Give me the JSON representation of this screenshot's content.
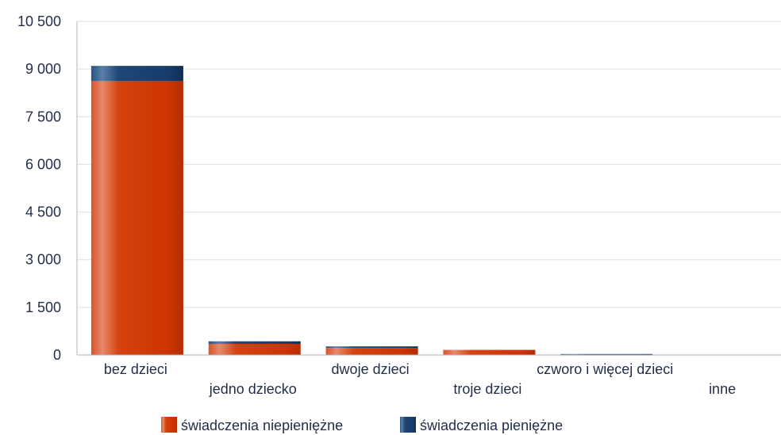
{
  "chart_data": {
    "type": "bar",
    "stacked": true,
    "categories": [
      "bez dzieci",
      "jedno dziecko",
      "dwoje dzieci",
      "troje dzieci",
      "czworo i więcej dzieci",
      "inne"
    ],
    "series": [
      {
        "name": "świadczenia niepieniężne",
        "values": [
          8620,
          350,
          220,
          160,
          10,
          0
        ],
        "color": "#cc3300"
      },
      {
        "name": "świadczenia pieniężne",
        "values": [
          480,
          80,
          50,
          0,
          20,
          0
        ],
        "color": "#163c6b"
      }
    ],
    "ylim": [
      0,
      10500
    ],
    "y_ticks": [
      "0",
      "1 500",
      "3 000",
      "4 500",
      "6 000",
      "7 500",
      "9 000",
      "10 500"
    ],
    "y_tick_values": [
      0,
      1500,
      3000,
      4500,
      6000,
      7500,
      9000,
      10500
    ],
    "grid": true,
    "legend_position": "bottom"
  }
}
